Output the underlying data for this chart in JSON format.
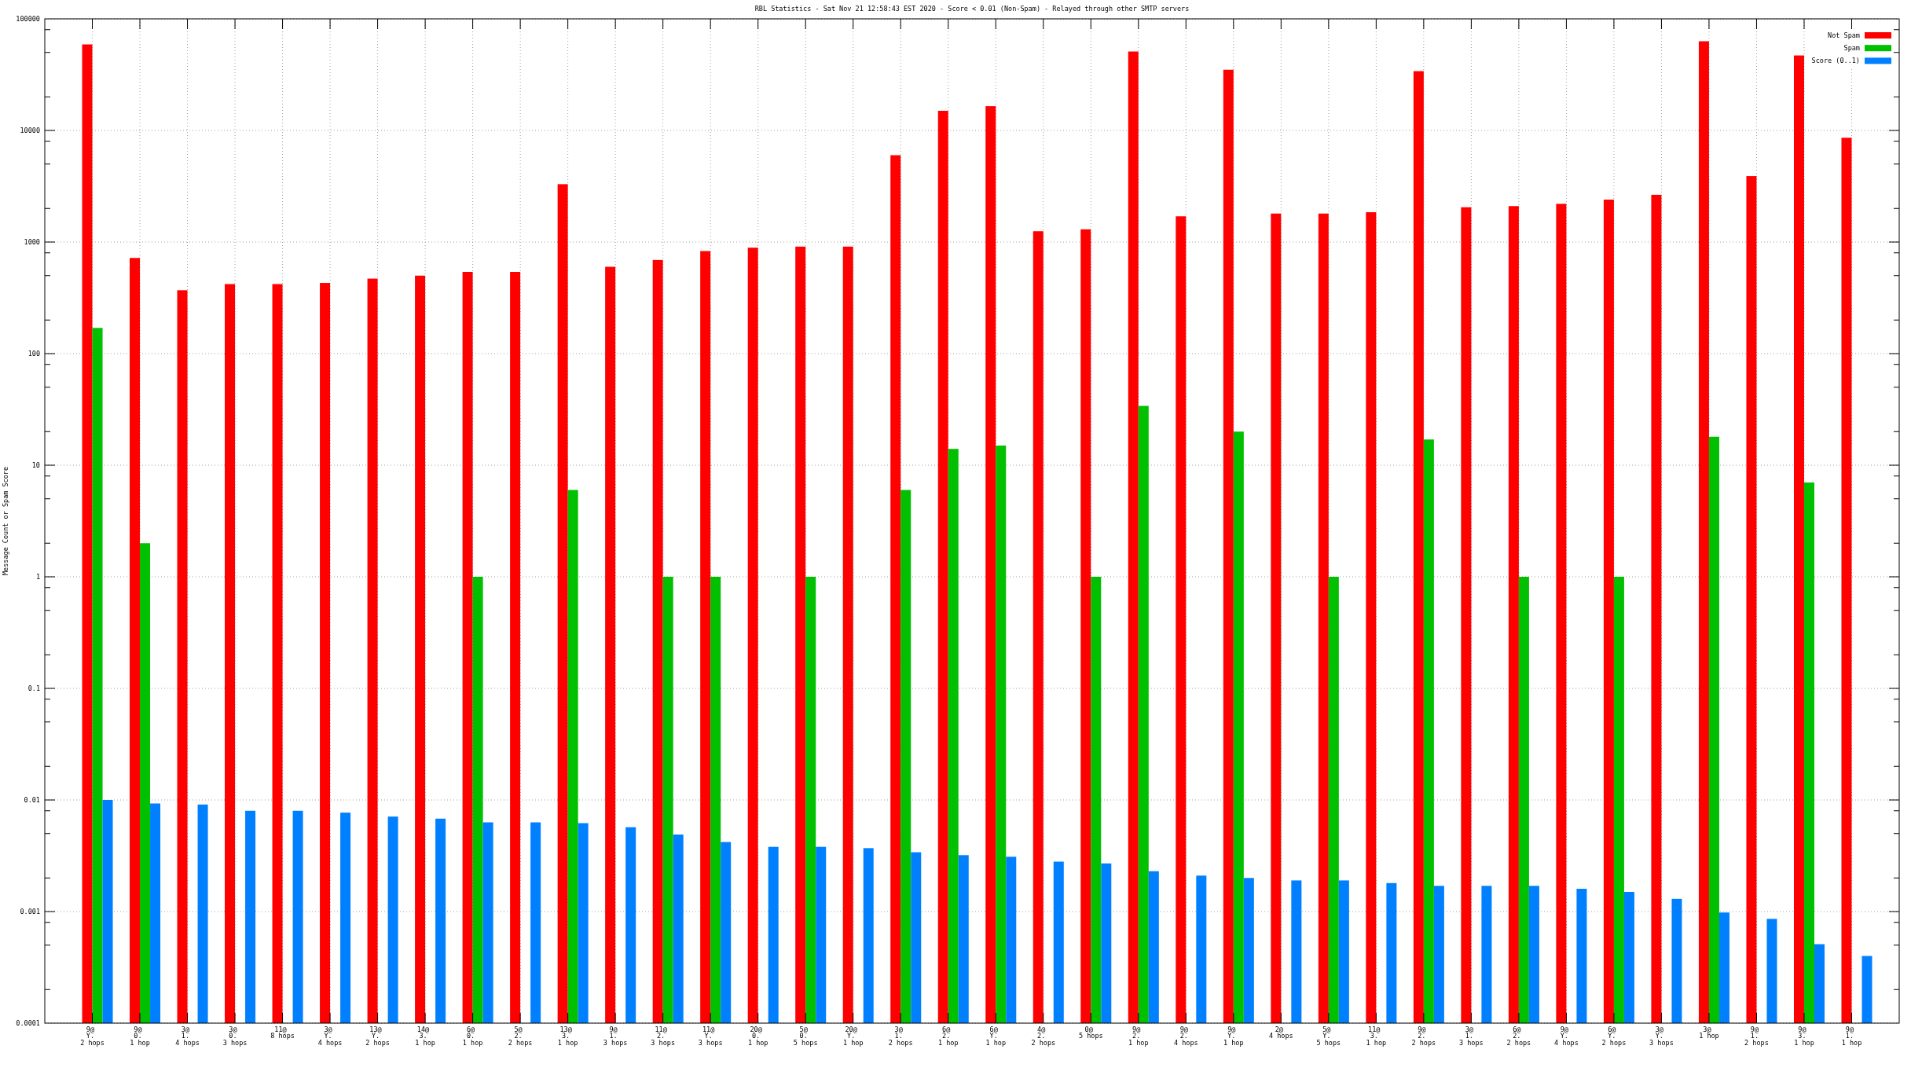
{
  "chart_data": {
    "type": "bar",
    "title": "RBL Statistics - Sat Nov 21 12:58:43 EST 2020 - Score < 0.01 (Non-Spam) - Relayed through other SMTP servers",
    "ylabel": "Message Count or Spam Score",
    "categories": [
      "9@\nY.\n2 hops",
      "9@\n0.\n1 hop",
      "3@\n1.\n4 hops",
      "3@\n0.\n3 hops",
      "11@\n8 hops",
      "3@\nY.\n4 hops",
      "13@\nY.\n2 hops",
      "14@\n3.\n1 hop",
      "6@\n0.\n1 hop",
      "5@\n2.\n2 hops",
      "13@\n3.\n1 hop",
      "9@\n1.\n3 hops",
      "11@\n2.\n3 hops",
      "11@\nY.\n3 hops",
      "20@\n0.\n1 hop",
      "5@\n0.\n5 hops",
      "20@\nY.\n1 hop",
      "3@\n1.\n2 hops",
      "6@\n2.\n1 hop",
      "6@\nY.\n1 hop",
      "4@\n2.\n2 hops",
      "0@\n5 hops",
      "9@\n2.\n1 hop",
      "9@\n2.\n4 hops",
      "9@\nY.\n1 hop",
      "2@\n4 hops",
      "5@\nY.\n5 hops",
      "11@\n3.\n1 hop",
      "9@\n2.\n2 hops",
      "3@\n1.\n3 hops",
      "6@\n2.\n2 hops",
      "9@\nY.\n4 hops",
      "6@\nY.\n2 hops",
      "3@\nY.\n3 hops",
      "3@\n1 hop",
      "9@\n1.\n2 hops",
      "9@\n3.\n1 hop",
      "9@\n1.\n1 hop"
    ],
    "series": [
      {
        "name": "Not Spam",
        "color": "#ff0000",
        "values": [
          59000,
          720,
          370,
          420,
          420,
          430,
          470,
          500,
          540,
          540,
          3300,
          600,
          690,
          830,
          890,
          910,
          910,
          6000,
          15000,
          16500,
          1250,
          1300,
          51000,
          1700,
          35000,
          1800,
          1800,
          1850,
          34000,
          2050,
          2100,
          2200,
          2400,
          2650,
          63000,
          3900,
          47000,
          8600
        ]
      },
      {
        "name": "Spam",
        "color": "#00c000",
        "values": [
          170,
          2,
          null,
          null,
          null,
          null,
          null,
          null,
          1,
          null,
          6,
          null,
          1,
          1,
          null,
          1,
          null,
          6,
          14,
          15,
          null,
          1,
          34,
          null,
          20,
          null,
          1,
          null,
          17,
          null,
          1,
          null,
          1,
          null,
          18,
          null,
          7,
          null
        ]
      },
      {
        "name": "Score (0..1)",
        "color": "#0080ff",
        "values": [
          0.01,
          0.0093,
          0.0091,
          0.008,
          0.008,
          0.0077,
          0.0071,
          0.0068,
          0.0063,
          0.0063,
          0.0062,
          0.0057,
          0.0049,
          0.0042,
          0.0038,
          0.0038,
          0.0037,
          0.0034,
          0.0032,
          0.0031,
          0.0028,
          0.0027,
          0.0023,
          0.0021,
          0.002,
          0.0019,
          0.0019,
          0.0018,
          0.0017,
          0.0017,
          0.0017,
          0.0016,
          0.0015,
          0.0013,
          0.00098,
          0.00086,
          0.00051,
          0.0004
        ]
      }
    ],
    "ylim": [
      0.0001,
      100000
    ],
    "yticks": [
      0.0001,
      {
        "value": 0.0002,
        "label": null
      },
      {
        "value": 0.0005,
        "label": null
      },
      {
        "value": 0.0008,
        "label": null
      },
      0.001,
      {
        "value": 0.002,
        "label": null
      },
      {
        "value": 0.005,
        "label": null
      },
      {
        "value": 0.008,
        "label": null
      },
      0.01,
      {
        "value": 0.02,
        "label": null
      },
      {
        "value": 0.05,
        "label": null
      },
      {
        "value": 0.08,
        "label": null
      },
      0.1,
      {
        "value": 0.2,
        "label": null
      },
      {
        "value": 0.5,
        "label": null
      },
      {
        "value": 0.8,
        "label": null
      },
      1,
      {
        "value": 2,
        "label": null
      },
      {
        "value": 5,
        "label": null
      },
      {
        "value": 8,
        "label": null
      },
      10,
      {
        "value": 20,
        "label": null
      },
      {
        "value": 50,
        "label": null
      },
      {
        "value": 80,
        "label": null
      },
      100,
      {
        "value": 200,
        "label": null
      },
      {
        "value": 500,
        "label": null
      },
      {
        "value": 800,
        "label": null
      },
      1000,
      {
        "value": 2000,
        "label": null
      },
      {
        "value": 5000,
        "label": null
      },
      {
        "value": 8000,
        "label": null
      },
      10000,
      {
        "value": 20000,
        "label": null
      },
      {
        "value": 50000,
        "label": null
      },
      {
        "value": 80000,
        "label": null
      },
      100000
    ],
    "log": true,
    "grid": true,
    "legend": "top right"
  }
}
